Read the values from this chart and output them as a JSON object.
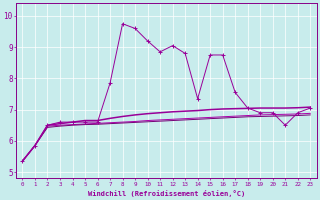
{
  "xlabel": "Windchill (Refroidissement éolien,°C)",
  "bg_color": "#c8ecec",
  "line_color": "#990099",
  "grid_color": "#aadddd",
  "spine_color": "#880088",
  "x_ticks": [
    0,
    1,
    2,
    3,
    4,
    5,
    6,
    7,
    8,
    9,
    10,
    11,
    12,
    13,
    14,
    15,
    16,
    17,
    18,
    19,
    20,
    21,
    22,
    23
  ],
  "y_ticks": [
    5,
    6,
    7,
    8,
    9,
    10
  ],
  "ylim": [
    4.8,
    10.4
  ],
  "xlim": [
    -0.5,
    23.5
  ],
  "line1_x": [
    0,
    1,
    2,
    3,
    4,
    5,
    6,
    7,
    8,
    9,
    10,
    11,
    12,
    13,
    14,
    15,
    16,
    17,
    18,
    19,
    20,
    21,
    22,
    23
  ],
  "line1_y": [
    5.35,
    5.85,
    6.5,
    6.6,
    6.6,
    6.6,
    6.6,
    7.85,
    9.75,
    9.6,
    9.2,
    8.85,
    9.05,
    8.8,
    7.35,
    8.75,
    8.75,
    7.55,
    7.05,
    6.9,
    6.9,
    6.5,
    6.9,
    7.05
  ],
  "line2_x": [
    0,
    1,
    2,
    3,
    4,
    5,
    6,
    7,
    8,
    9,
    10,
    11,
    12,
    13,
    14,
    15,
    16,
    17,
    18,
    19,
    20,
    21,
    22,
    23
  ],
  "line2_y": [
    5.35,
    5.85,
    6.5,
    6.55,
    6.6,
    6.65,
    6.65,
    6.72,
    6.78,
    6.83,
    6.87,
    6.9,
    6.93,
    6.95,
    6.97,
    7.0,
    7.02,
    7.03,
    7.04,
    7.05,
    7.05,
    7.05,
    7.06,
    7.08
  ],
  "line3_x": [
    0,
    1,
    2,
    3,
    4,
    5,
    6,
    7,
    8,
    9,
    10,
    11,
    12,
    13,
    14,
    15,
    16,
    17,
    18,
    19,
    20,
    21,
    22,
    23
  ],
  "line3_y": [
    5.35,
    5.85,
    6.47,
    6.5,
    6.52,
    6.54,
    6.56,
    6.58,
    6.6,
    6.62,
    6.65,
    6.67,
    6.69,
    6.71,
    6.73,
    6.75,
    6.77,
    6.79,
    6.81,
    6.83,
    6.84,
    6.85,
    6.86,
    6.88
  ],
  "line4_x": [
    0,
    1,
    2,
    3,
    4,
    5,
    6,
    7,
    8,
    9,
    10,
    11,
    12,
    13,
    14,
    15,
    16,
    17,
    18,
    19,
    20,
    21,
    22,
    23
  ],
  "line4_y": [
    5.35,
    5.85,
    6.43,
    6.47,
    6.5,
    6.52,
    6.53,
    6.55,
    6.57,
    6.59,
    6.61,
    6.63,
    6.65,
    6.67,
    6.69,
    6.71,
    6.73,
    6.75,
    6.77,
    6.78,
    6.79,
    6.8,
    6.81,
    6.83
  ]
}
